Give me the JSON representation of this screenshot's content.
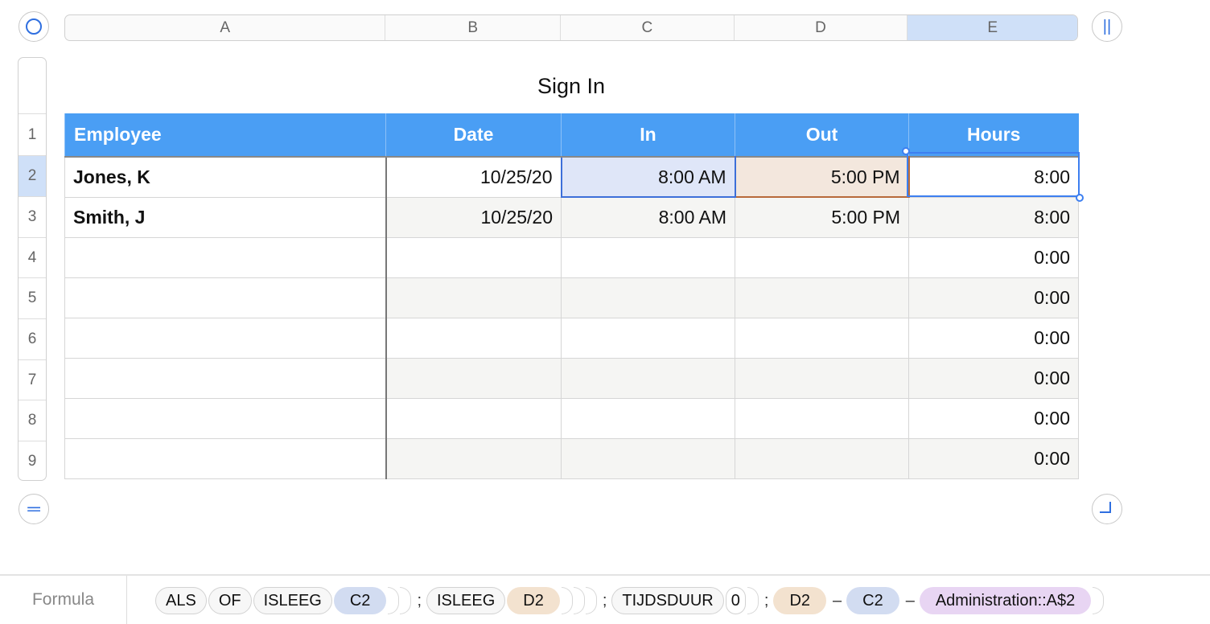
{
  "columns": [
    "A",
    "B",
    "C",
    "D",
    "E"
  ],
  "selected_column": "E",
  "rows": [
    "1",
    "2",
    "3",
    "4",
    "5",
    "6",
    "7",
    "8",
    "9"
  ],
  "selected_row": "2",
  "table": {
    "title": "Sign In",
    "headers": [
      "Employee",
      "Date",
      "In",
      "Out",
      "Hours"
    ],
    "body": [
      [
        "Jones, K",
        "10/25/20",
        "8:00 AM",
        "5:00 PM",
        "8:00"
      ],
      [
        "Smith, J",
        "10/25/20",
        "8:00 AM",
        "5:00 PM",
        "8:00"
      ],
      [
        "",
        "",
        "",
        "",
        "0:00"
      ],
      [
        "",
        "",
        "",
        "",
        "0:00"
      ],
      [
        "",
        "",
        "",
        "",
        "0:00"
      ],
      [
        "",
        "",
        "",
        "",
        "0:00"
      ],
      [
        "",
        "",
        "",
        "",
        "0:00"
      ],
      [
        "",
        "",
        "",
        "",
        "0:00"
      ]
    ]
  },
  "colors": {
    "header": "#4a9ef4",
    "selection": "#3d7ff0",
    "c2_ref": "#d2dcf1",
    "d2_ref": "#f3e2cf",
    "admin_ref": "#e8d5f3"
  },
  "formula": {
    "label": "Formula",
    "tokens": {
      "als": "ALS",
      "of": "OF",
      "isleeg1": "ISLEEG",
      "c2a": "C2",
      "sep1": ";",
      "isleeg2": "ISLEEG",
      "d2a": "D2",
      "sep2": ";",
      "tijdsduur": "TIJDSDUUR",
      "zero": "0",
      "sep3": ";",
      "d2b": "D2",
      "minus1": "–",
      "c2b": "C2",
      "minus2": "–",
      "admin": "Administration::A$2"
    }
  }
}
